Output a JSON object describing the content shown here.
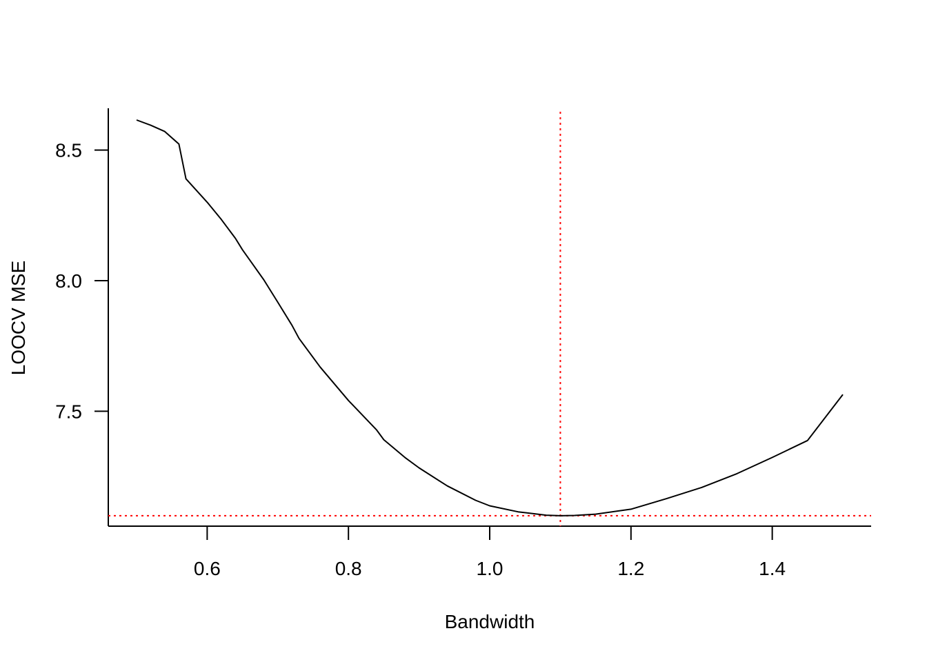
{
  "chart_data": {
    "type": "line",
    "title": "",
    "xlabel": "Bandwidth",
    "ylabel": "LOOCV MSE",
    "xlim": [
      0.46,
      1.54
    ],
    "ylim": [
      7.06,
      8.66
    ],
    "x_ticks": [
      0.6,
      0.8,
      1.0,
      1.2,
      1.4
    ],
    "x_tick_labels": [
      "0.6",
      "0.8",
      "1.0",
      "1.2",
      "1.4"
    ],
    "y_ticks": [
      7.5,
      8.0,
      8.5
    ],
    "y_tick_labels": [
      "7.5",
      "8.0",
      "8.5"
    ],
    "grid": false,
    "series": [
      {
        "color": "#000000",
        "x": [
          0.5,
          0.52,
          0.54,
          0.56,
          0.57,
          0.6,
          0.62,
          0.64,
          0.65,
          0.68,
          0.7,
          0.72,
          0.73,
          0.76,
          0.8,
          0.84,
          0.85,
          0.88,
          0.9,
          0.94,
          0.98,
          1.0,
          1.04,
          1.08,
          1.1,
          1.12,
          1.15,
          1.2,
          1.25,
          1.3,
          1.35,
          1.4,
          1.45,
          1.5
        ],
        "y": [
          8.615,
          8.595,
          8.571,
          8.523,
          8.39,
          8.3,
          8.234,
          8.162,
          8.118,
          8.004,
          7.917,
          7.829,
          7.779,
          7.669,
          7.541,
          7.428,
          7.391,
          7.323,
          7.283,
          7.214,
          7.159,
          7.138,
          7.115,
          7.102,
          7.1,
          7.101,
          7.106,
          7.125,
          7.165,
          7.208,
          7.261,
          7.323,
          7.388,
          7.564
        ]
      }
    ],
    "reference_lines": [
      {
        "orientation": "vertical",
        "value": 1.1,
        "color": "#ff0000",
        "style": "dotted"
      },
      {
        "orientation": "horizontal",
        "value": 7.1,
        "color": "#ff0000",
        "style": "dotted"
      }
    ]
  }
}
